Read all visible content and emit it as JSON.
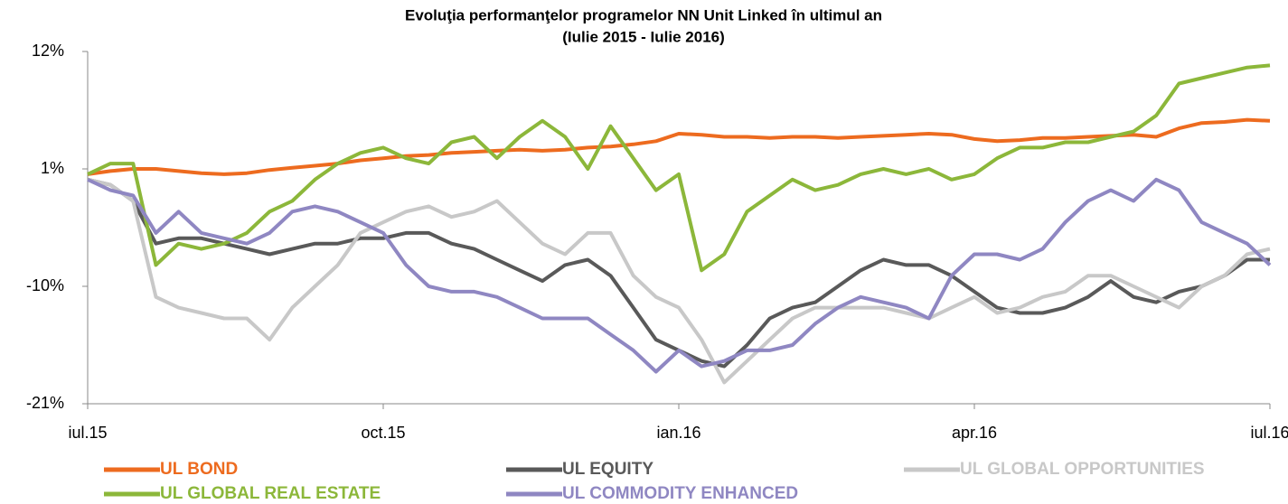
{
  "chart_data": {
    "type": "line",
    "title": "Evoluţia performanţelor programelor NN Unit Linked în ultimul an",
    "subtitle": "(Iulie 2015 - Iulie 2016)",
    "categories": [
      "iul.15",
      null,
      null,
      null,
      null,
      null,
      null,
      null,
      null,
      null,
      null,
      null,
      null,
      "oct.15",
      null,
      null,
      null,
      null,
      null,
      null,
      null,
      null,
      null,
      null,
      null,
      null,
      "ian.16",
      null,
      null,
      null,
      null,
      null,
      null,
      null,
      null,
      null,
      null,
      null,
      null,
      "apr.16",
      null,
      null,
      null,
      null,
      null,
      null,
      null,
      null,
      null,
      null,
      null,
      null,
      "iul.16"
    ],
    "ylim": [
      -21,
      12
    ],
    "yticks": [
      {
        "value": -21,
        "label": "-21%"
      },
      {
        "value": -10,
        "label": "-10%"
      },
      {
        "value": 1,
        "label": "1%"
      },
      {
        "value": 12,
        "label": "12%"
      }
    ],
    "legend": "bottom",
    "series": [
      {
        "name": "UL BOND",
        "color": "#ed6b1f",
        "values": [
          0.5,
          0.8,
          1,
          1,
          0.8,
          0.6,
          0.5,
          0.6,
          0.9,
          1.1,
          1.3,
          1.5,
          1.8,
          2,
          2.2,
          2.3,
          2.5,
          2.6,
          2.7,
          2.8,
          2.7,
          2.8,
          3,
          3.1,
          3.3,
          3.6,
          4.3,
          4.2,
          4,
          4,
          3.9,
          4,
          4,
          3.9,
          4,
          4.1,
          4.2,
          4.3,
          4.2,
          3.8,
          3.6,
          3.7,
          3.9,
          3.9,
          4,
          4.1,
          4.2,
          4,
          4.8,
          5.3,
          5.4,
          5.6,
          5.5
        ]
      },
      {
        "name": "UL EQUITY",
        "color": "#595959",
        "values": [
          0,
          -0.5,
          -2,
          -6,
          -5.5,
          -5.5,
          -6,
          -6.5,
          -7,
          -6.5,
          -6,
          -6,
          -5.5,
          -5.5,
          -5,
          -5,
          -6,
          -6.5,
          -7.5,
          -8.5,
          -9.5,
          -8,
          -7.5,
          -9,
          -12,
          -15,
          -16,
          -17,
          -17.5,
          -15.5,
          -13,
          -12,
          -11.5,
          -10,
          -8.5,
          -7.5,
          -8,
          -8,
          -9,
          -10.5,
          -12,
          -12.5,
          -12.5,
          -12,
          -11,
          -9.5,
          -11,
          -11.5,
          -10.5,
          -10,
          -9,
          -7.5,
          -7.5
        ]
      },
      {
        "name": "UL GLOBAL OPPORTUNITIES",
        "color": "#c8c8c8",
        "values": [
          0,
          -0.5,
          -2,
          -11,
          -12,
          -12.5,
          -13,
          -13,
          -15,
          -12,
          -10,
          -8,
          -5,
          -4,
          -3,
          -2.5,
          -3.5,
          -3,
          -2,
          -4,
          -6,
          -7,
          -5,
          -5,
          -9,
          -11,
          -12,
          -15,
          -19,
          -17,
          -15,
          -13,
          -12,
          -12,
          -12,
          -12,
          -12.5,
          -13,
          -12,
          -11,
          -12.5,
          -12,
          -11,
          -10.5,
          -9,
          -9,
          -10,
          -11,
          -12,
          -10,
          -9,
          -7,
          -6.5
        ]
      },
      {
        "name": "UL GLOBAL REAL ESTATE",
        "color": "#8cb73a",
        "values": [
          0.5,
          1.5,
          1.5,
          -8,
          -6,
          -6.5,
          -6,
          -5,
          -3,
          -2,
          0,
          1.5,
          2.5,
          3,
          2,
          1.5,
          3.5,
          4,
          2,
          4,
          5.5,
          4,
          1,
          5,
          2,
          -1,
          0.5,
          -8.5,
          -7,
          -3,
          -1.5,
          0,
          -1,
          -0.5,
          0.5,
          1,
          0.5,
          1,
          0,
          0.5,
          2,
          3,
          3,
          3.5,
          3.5,
          4,
          4.5,
          6,
          9,
          9.5,
          10,
          10.5,
          10.7
        ]
      },
      {
        "name": "UL COMMODITY ENHANCED",
        "color": "#8f87c2",
        "values": [
          0,
          -1,
          -1.5,
          -5,
          -3,
          -5,
          -5.5,
          -6,
          -5,
          -3,
          -2.5,
          -3,
          -4,
          -5,
          -8,
          -10,
          -10.5,
          -10.5,
          -11,
          -12,
          -13,
          -13,
          -13,
          -14.5,
          -16,
          -18,
          -16,
          -17.5,
          -17,
          -16,
          -16,
          -15.5,
          -13.5,
          -12,
          -11,
          -11.5,
          -12,
          -13,
          -9,
          -7,
          -7,
          -7.5,
          -6.5,
          -4,
          -2,
          -1,
          -2,
          0,
          -1,
          -4,
          -5,
          -6,
          -8
        ]
      }
    ]
  }
}
